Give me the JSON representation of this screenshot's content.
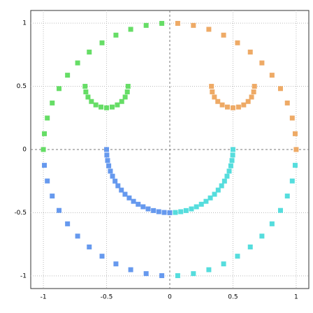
{
  "chart_data": {
    "type": "scatter",
    "xlim": [
      -1.1,
      1.1
    ],
    "ylim": [
      -1.1,
      1.1
    ],
    "xticks": [
      -1,
      -0.5,
      0,
      0.5,
      1
    ],
    "yticks": [
      -1,
      -0.5,
      0,
      0.5,
      1
    ],
    "grid": true,
    "series": [
      {
        "color": "#66dd66",
        "x": [
          -0.063,
          -0.187,
          -0.309,
          -0.426,
          -0.536,
          -0.637,
          -0.729,
          -0.809,
          -0.876,
          -0.93,
          -0.969,
          -0.992,
          -1,
          -0.67,
          -0.664,
          -0.647,
          -0.62,
          -0.585,
          -0.544,
          -0.5,
          -0.456,
          -0.415,
          -0.38,
          -0.353,
          -0.336,
          -0.33
        ],
        "y": [
          0.998,
          0.982,
          0.951,
          0.905,
          0.844,
          0.771,
          0.685,
          0.588,
          0.482,
          0.368,
          0.249,
          0.125,
          0,
          0.5,
          0.456,
          0.415,
          0.38,
          0.353,
          0.336,
          0.33,
          0.336,
          0.353,
          0.38,
          0.415,
          0.456,
          0.5
        ]
      },
      {
        "color": "#eeaa66",
        "x": [
          1,
          0.992,
          0.969,
          0.93,
          0.876,
          0.809,
          0.729,
          0.637,
          0.536,
          0.426,
          0.309,
          0.187,
          0.063,
          0.33,
          0.336,
          0.353,
          0.38,
          0.415,
          0.456,
          0.5,
          0.544,
          0.585,
          0.62,
          0.647,
          0.664,
          0.67
        ],
        "y": [
          0,
          0.125,
          0.249,
          0.368,
          0.482,
          0.588,
          0.685,
          0.771,
          0.844,
          0.905,
          0.951,
          0.982,
          0.998,
          0.5,
          0.456,
          0.415,
          0.38,
          0.353,
          0.336,
          0.33,
          0.336,
          0.353,
          0.38,
          0.415,
          0.456,
          0.5
        ]
      },
      {
        "color": "#6699ee",
        "x": [
          -0.992,
          -0.969,
          -0.93,
          -0.876,
          -0.809,
          -0.729,
          -0.637,
          -0.536,
          -0.426,
          -0.309,
          -0.187,
          -0.063,
          -0.5,
          -0.498,
          -0.492,
          -0.483,
          -0.47,
          -0.453,
          -0.433,
          -0.41,
          -0.383,
          -0.354,
          -0.321,
          -0.287,
          -0.25,
          -0.211,
          -0.171,
          -0.129,
          -0.087,
          -0.044,
          0
        ],
        "y": [
          -0.125,
          -0.249,
          -0.368,
          -0.482,
          -0.588,
          -0.685,
          -0.771,
          -0.844,
          -0.905,
          -0.951,
          -0.982,
          -0.998,
          0,
          -0.044,
          -0.087,
          -0.129,
          -0.171,
          -0.211,
          -0.25,
          -0.287,
          -0.321,
          -0.354,
          -0.383,
          -0.41,
          -0.433,
          -0.453,
          -0.47,
          -0.483,
          -0.492,
          -0.498,
          -0.5
        ]
      },
      {
        "color": "#55dddd",
        "x": [
          0.063,
          0.187,
          0.309,
          0.426,
          0.536,
          0.637,
          0.729,
          0.809,
          0.876,
          0.93,
          0.969,
          0.992,
          0.044,
          0.087,
          0.129,
          0.171,
          0.211,
          0.25,
          0.287,
          0.321,
          0.354,
          0.383,
          0.41,
          0.433,
          0.453,
          0.47,
          0.483,
          0.492,
          0.498,
          0.5
        ],
        "y": [
          -0.998,
          -0.982,
          -0.951,
          -0.905,
          -0.844,
          -0.771,
          -0.685,
          -0.588,
          -0.482,
          -0.368,
          -0.249,
          -0.125,
          -0.498,
          -0.492,
          -0.483,
          -0.47,
          -0.453,
          -0.433,
          -0.41,
          -0.383,
          -0.354,
          -0.321,
          -0.287,
          -0.25,
          -0.211,
          -0.171,
          -0.129,
          -0.087,
          -0.044,
          0
        ]
      }
    ]
  }
}
